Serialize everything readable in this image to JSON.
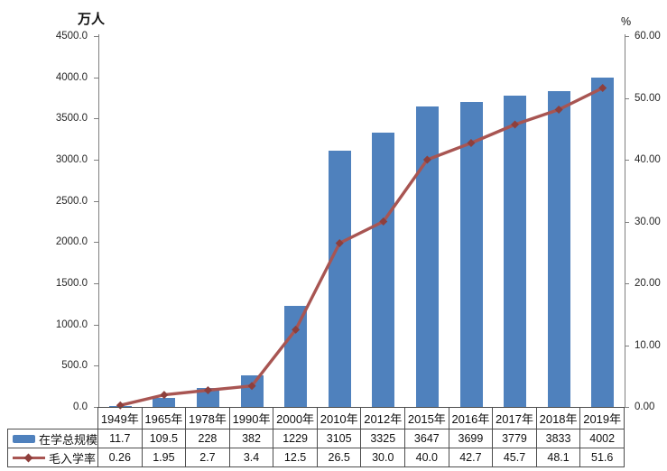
{
  "chart_data": {
    "type": "combo_bar_line",
    "categories": [
      "1949年",
      "1965年",
      "1978年",
      "1990年",
      "2000年",
      "2010年",
      "2012年",
      "2015年",
      "2016年",
      "2017年",
      "2018年",
      "2019年"
    ],
    "series": [
      {
        "name": "在学总规模",
        "type": "bar",
        "axis": "left",
        "color": "#4F81BD",
        "values": [
          "11.7",
          "109.5",
          "228",
          "382",
          "1229",
          "3105",
          "3325",
          "3647",
          "3699",
          "3779",
          "3833",
          "4002"
        ]
      },
      {
        "name": "毛入学率",
        "type": "line",
        "axis": "right",
        "color": "#A85552",
        "marker": "diamond",
        "marker_color": "#8E3F3C",
        "values": [
          "0.26",
          "1.95",
          "2.7",
          "3.4",
          "12.5",
          "26.5",
          "30.0",
          "40.0",
          "42.7",
          "45.7",
          "48.1",
          "51.6"
        ]
      }
    ],
    "left_axis": {
      "title": "万人",
      "min": 0,
      "max": 4500,
      "ticks": [
        "4500.0",
        "4000.0",
        "3500.0",
        "3000.0",
        "2500.0",
        "2000.0",
        "1500.0",
        "1000.0",
        "500.0",
        "0.0"
      ]
    },
    "right_axis": {
      "title": "%",
      "min": 0,
      "max": 60,
      "ticks": [
        "60.00",
        "50.00",
        "40.00",
        "30.00",
        "20.00",
        "10.00",
        "0.00"
      ]
    },
    "grid": false,
    "legend_position": "table-rows-bottom-left"
  }
}
